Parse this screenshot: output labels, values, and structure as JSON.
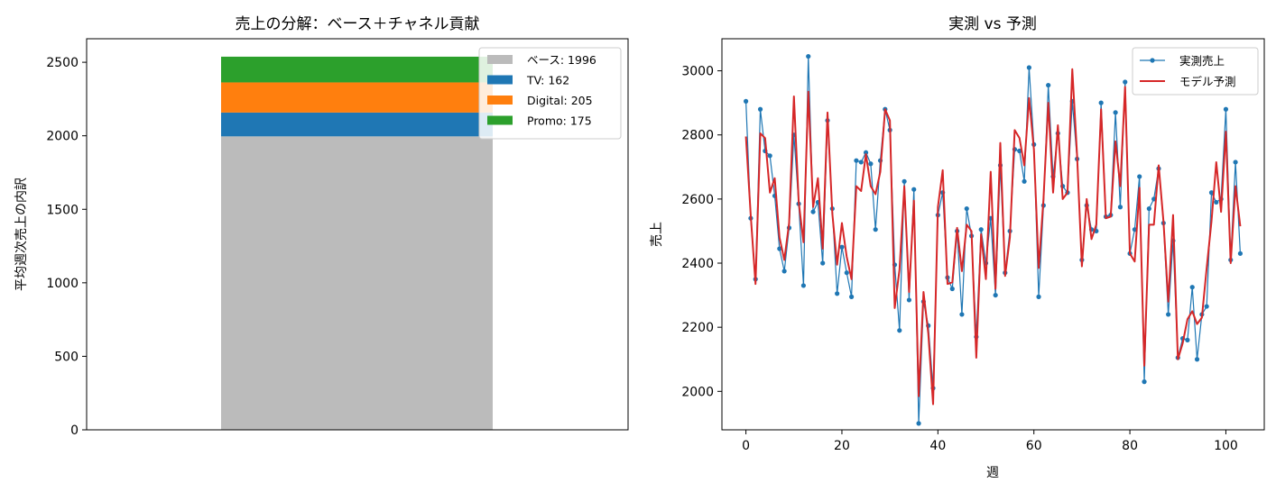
{
  "chart_data": [
    {
      "type": "bar",
      "stacked": true,
      "title": "売上の分解：ベース＋チャネル貢献",
      "xlabel": "",
      "ylabel": "平均週次売上の内訳",
      "ylim": [
        0,
        2660
      ],
      "yticks": [
        "0",
        "500",
        "1000",
        "1500",
        "2000",
        "2500"
      ],
      "grid": false,
      "legend_position": "top-right",
      "series": [
        {
          "name": "ベース",
          "value": 1996,
          "color": "#bbbbbb",
          "legend": "ベース: 1996"
        },
        {
          "name": "TV",
          "value": 162,
          "color": "#1f77b4",
          "legend": "TV: 162"
        },
        {
          "name": "Digital",
          "value": 205,
          "color": "#ff7f0e",
          "legend": "Digital: 205"
        },
        {
          "name": "Promo",
          "value": 175,
          "color": "#2ca02c",
          "legend": "Promo: 175"
        }
      ]
    },
    {
      "type": "line",
      "title": "実測 vs 予測",
      "xlabel": "週",
      "ylabel": "売上",
      "xlim": [
        -5,
        108
      ],
      "ylim": [
        1880,
        3100
      ],
      "xticks": [
        "0",
        "20",
        "40",
        "60",
        "80",
        "100"
      ],
      "yticks": [
        "2000",
        "2200",
        "2400",
        "2600",
        "2800",
        "3000"
      ],
      "grid": false,
      "legend_position": "top-right",
      "series": [
        {
          "name": "実測売上",
          "color": "#1f77b4",
          "marker": "circle",
          "values": [
            2905,
            2540,
            2350,
            2880,
            2750,
            2735,
            2610,
            2445,
            2375,
            2510,
            2800,
            2585,
            2330,
            3045,
            2560,
            2590,
            2400,
            2845,
            2570,
            2305,
            2450,
            2370,
            2295,
            2720,
            2715,
            2745,
            2710,
            2505,
            2720,
            2880,
            2815,
            2395,
            2190,
            2655,
            2285,
            2630,
            1900,
            2280,
            2205,
            2010,
            2550,
            2620,
            2355,
            2320,
            2500,
            2240,
            2570,
            2485,
            2170,
            2505,
            2400,
            2540,
            2300,
            2705,
            2370,
            2500,
            2755,
            2750,
            2655,
            3010,
            2770,
            2295,
            2580,
            2955,
            2670,
            2805,
            2640,
            2620,
            2905,
            2725,
            2410,
            2580,
            2505,
            2500,
            2900,
            2545,
            2550,
            2870,
            2575,
            2965,
            2430,
            2505,
            2670,
            2030,
            2570,
            2600,
            2695,
            2525,
            2240,
            2470,
            2105,
            2165,
            2160,
            2325,
            2100,
            2240,
            2265,
            2620,
            2590,
            2600,
            2880,
            2410,
            2715,
            2430
          ]
        },
        {
          "name": "モデル予測",
          "color": "#d62728",
          "marker": "none",
          "values": [
            2795,
            2550,
            2335,
            2805,
            2790,
            2620,
            2665,
            2480,
            2410,
            2525,
            2920,
            2590,
            2465,
            2935,
            2575,
            2665,
            2445,
            2870,
            2555,
            2395,
            2525,
            2420,
            2350,
            2640,
            2625,
            2740,
            2640,
            2615,
            2685,
            2880,
            2845,
            2260,
            2380,
            2640,
            2310,
            2595,
            1985,
            2310,
            2180,
            1960,
            2575,
            2690,
            2335,
            2340,
            2510,
            2375,
            2520,
            2500,
            2105,
            2490,
            2350,
            2685,
            2320,
            2775,
            2360,
            2480,
            2815,
            2790,
            2705,
            2915,
            2755,
            2385,
            2600,
            2900,
            2620,
            2830,
            2600,
            2620,
            3005,
            2735,
            2390,
            2600,
            2475,
            2520,
            2880,
            2540,
            2545,
            2780,
            2640,
            2950,
            2430,
            2405,
            2635,
            2080,
            2520,
            2520,
            2705,
            2530,
            2280,
            2550,
            2100,
            2150,
            2225,
            2250,
            2210,
            2230,
            2385,
            2530,
            2715,
            2560,
            2810,
            2400,
            2640,
            2515
          ]
        }
      ]
    }
  ]
}
